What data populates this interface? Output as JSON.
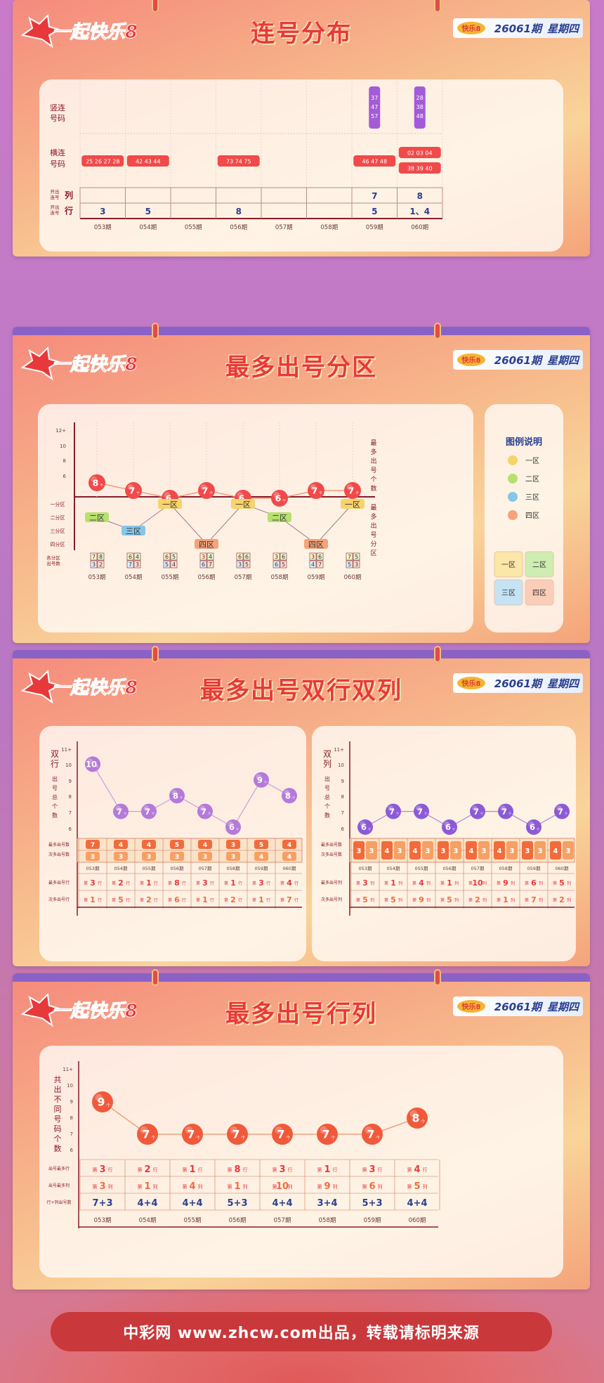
{
  "brand": {
    "logo_text": "一起快乐8",
    "issue": "26061期",
    "weekday": "星期四"
  },
  "sections": {
    "s1": {
      "title": "连号分布"
    },
    "s2": {
      "title": "最多出号分区"
    },
    "s3": {
      "title": "最多出号双行双列"
    },
    "s4": {
      "title": "最多出号行列"
    }
  },
  "periods": [
    "053期",
    "054期",
    "055期",
    "056期",
    "057期",
    "058期",
    "059期",
    "060期"
  ],
  "s1": {
    "row_labels": {
      "vertical": "竖连号码",
      "horizontal": "横连号码",
      "col_small": "开出连号",
      "col_big": "列",
      "row_small": "开出连号",
      "row_big": "行"
    },
    "vertical": [
      null,
      null,
      null,
      null,
      null,
      null,
      [
        "37",
        "47",
        "57"
      ],
      [
        "28",
        "38",
        "48"
      ]
    ],
    "horizontal": [
      [
        "25 26 27 28"
      ],
      [
        "42 43 44"
      ],
      [],
      [
        "73 74 75"
      ],
      [],
      [],
      [
        "46 47 48"
      ],
      [
        "02 03 04",
        "38 39 40"
      ]
    ],
    "col_values": [
      "",
      "",
      "",
      "",
      "",
      "",
      "7",
      "8"
    ],
    "row_values": [
      "3",
      "5",
      "",
      "8",
      "",
      "",
      "5",
      "1、4"
    ]
  },
  "s2": {
    "y_ticks": [
      "12+",
      "10",
      "8",
      "6"
    ],
    "y_label_top": "最多出号个数",
    "y_label_bottom": "最多出号分区",
    "zone_labels": [
      "一分区",
      "二分区",
      "三分区",
      "四分区"
    ],
    "count_unit": "个",
    "chart_data": {
      "type": "line",
      "title": "",
      "x": [
        "053期",
        "054期",
        "055期",
        "056期",
        "057期",
        "058期",
        "059期",
        "060期"
      ],
      "series": [
        {
          "values": [
            8,
            7,
            6,
            7,
            6,
            6,
            7,
            7
          ]
        },
        {
          "values": [
            "二区",
            "三区",
            "一区",
            "四区",
            "一区",
            "二区",
            "四区",
            "一区"
          ]
        }
      ],
      "ylim": [
        6,
        12
      ]
    },
    "zone_counts_label": "各分区出号数",
    "zone_counts": [
      [
        "7",
        "8",
        "3",
        "2"
      ],
      [
        "6",
        "4",
        "7",
        "3"
      ],
      [
        "6",
        "5",
        "5",
        "4"
      ],
      [
        "3",
        "4",
        "6",
        "7"
      ],
      [
        "6",
        "6",
        "3",
        "5"
      ],
      [
        "3",
        "6",
        "6",
        "5"
      ],
      [
        "3",
        "6",
        "4",
        "7"
      ],
      [
        "7",
        "5",
        "5",
        "3"
      ]
    ],
    "legend": {
      "title": "图例说明",
      "items": [
        {
          "label": "一区",
          "color": "#f7d36b"
        },
        {
          "label": "二区",
          "color": "#b7e06e"
        },
        {
          "label": "三区",
          "color": "#86c6e8"
        },
        {
          "label": "四区",
          "color": "#f4a37a"
        }
      ],
      "grid": [
        "一区",
        "二区",
        "三区",
        "四区"
      ]
    }
  },
  "s3": {
    "left": {
      "y_label": "双行出号总个数",
      "y_ticks": [
        "11+",
        "10",
        "9",
        "8",
        "7",
        "6"
      ],
      "chart_data": {
        "type": "line",
        "x": [
          "053期",
          "054期",
          "055期",
          "056期",
          "057期",
          "058期",
          "059期",
          "060期"
        ],
        "values": [
          10,
          7,
          7,
          8,
          7,
          6,
          9,
          8
        ],
        "ylim": [
          6,
          11
        ]
      },
      "unit": "个",
      "table_rows": [
        "最多出号数",
        "次多出号数"
      ],
      "max_counts": [
        "7",
        "4",
        "4",
        "5",
        "4",
        "3",
        "5",
        "4"
      ],
      "sub_counts": [
        "3",
        "3",
        "3",
        "3",
        "3",
        "3",
        "4",
        "4"
      ],
      "rows_max": [
        "3",
        "2",
        "1",
        "8",
        "3",
        "1",
        "3",
        "4"
      ],
      "rows_sub": [
        "1",
        "5",
        "2",
        "6",
        "1",
        "2",
        "1",
        "7"
      ],
      "row_labels": [
        "最多出号行",
        "次多出号行"
      ],
      "unit_row": "行",
      "prefix": "第"
    },
    "right": {
      "y_label": "双列出号总个数",
      "y_ticks": [
        "11+",
        "10",
        "9",
        "8",
        "7",
        "6"
      ],
      "chart_data": {
        "type": "line",
        "x": [
          "053期",
          "054期",
          "055期",
          "056期",
          "057期",
          "058期",
          "059期",
          "060期"
        ],
        "values": [
          6,
          7,
          7,
          6,
          7,
          7,
          6,
          7
        ],
        "ylim": [
          6,
          11
        ]
      },
      "unit": "个",
      "table_rows": [
        "最多出号数",
        "次多出号数"
      ],
      "pairs": [
        [
          "3",
          "3"
        ],
        [
          "4",
          "3"
        ],
        [
          "4",
          "3"
        ],
        [
          "3",
          "3"
        ],
        [
          "4",
          "3"
        ],
        [
          "4",
          "3"
        ],
        [
          "3",
          "3"
        ],
        [
          "4",
          "3"
        ]
      ],
      "cols_max": [
        "3",
        "1",
        "4",
        "1",
        "10",
        "9",
        "6",
        "5"
      ],
      "cols_sub": [
        "5",
        "5",
        "9",
        "5",
        "2",
        "1",
        "7",
        "2"
      ],
      "row_labels": [
        "最多出号列",
        "次多出号列"
      ],
      "unit_col": "列",
      "prefix": "第"
    }
  },
  "s4": {
    "y_label": "共出不同号码个数",
    "y_ticks": [
      "11+",
      "10",
      "9",
      "8",
      "7",
      "6"
    ],
    "chart_data": {
      "type": "line",
      "x": [
        "053期",
        "054期",
        "055期",
        "056期",
        "057期",
        "058期",
        "059期",
        "060期"
      ],
      "values": [
        9,
        7,
        7,
        7,
        7,
        7,
        7,
        8
      ],
      "ylim": [
        6,
        11
      ]
    },
    "unit": "个",
    "row_labels": [
      "出号最多行",
      "出号最多列",
      "行+列出号数"
    ],
    "best_row": [
      "3",
      "2",
      "1",
      "8",
      "3",
      "1",
      "3",
      "4"
    ],
    "best_col": [
      "3",
      "1",
      "4",
      "1",
      "10",
      "9",
      "6",
      "5"
    ],
    "sum": [
      "7+3",
      "4+4",
      "4+4",
      "5+3",
      "4+4",
      "3+4",
      "5+3",
      "4+4"
    ],
    "prefix": "第",
    "unit_row": "行",
    "unit_col": "列"
  },
  "footer": {
    "text": "中彩网 www.zhcw.com出品，转载请标明来源"
  },
  "colors": {
    "red": "#e8393a",
    "purple": "#a45bd8",
    "orange": "#f26b3a",
    "dark_red": "#8a1b2a",
    "blue": "#2b3f8f"
  }
}
